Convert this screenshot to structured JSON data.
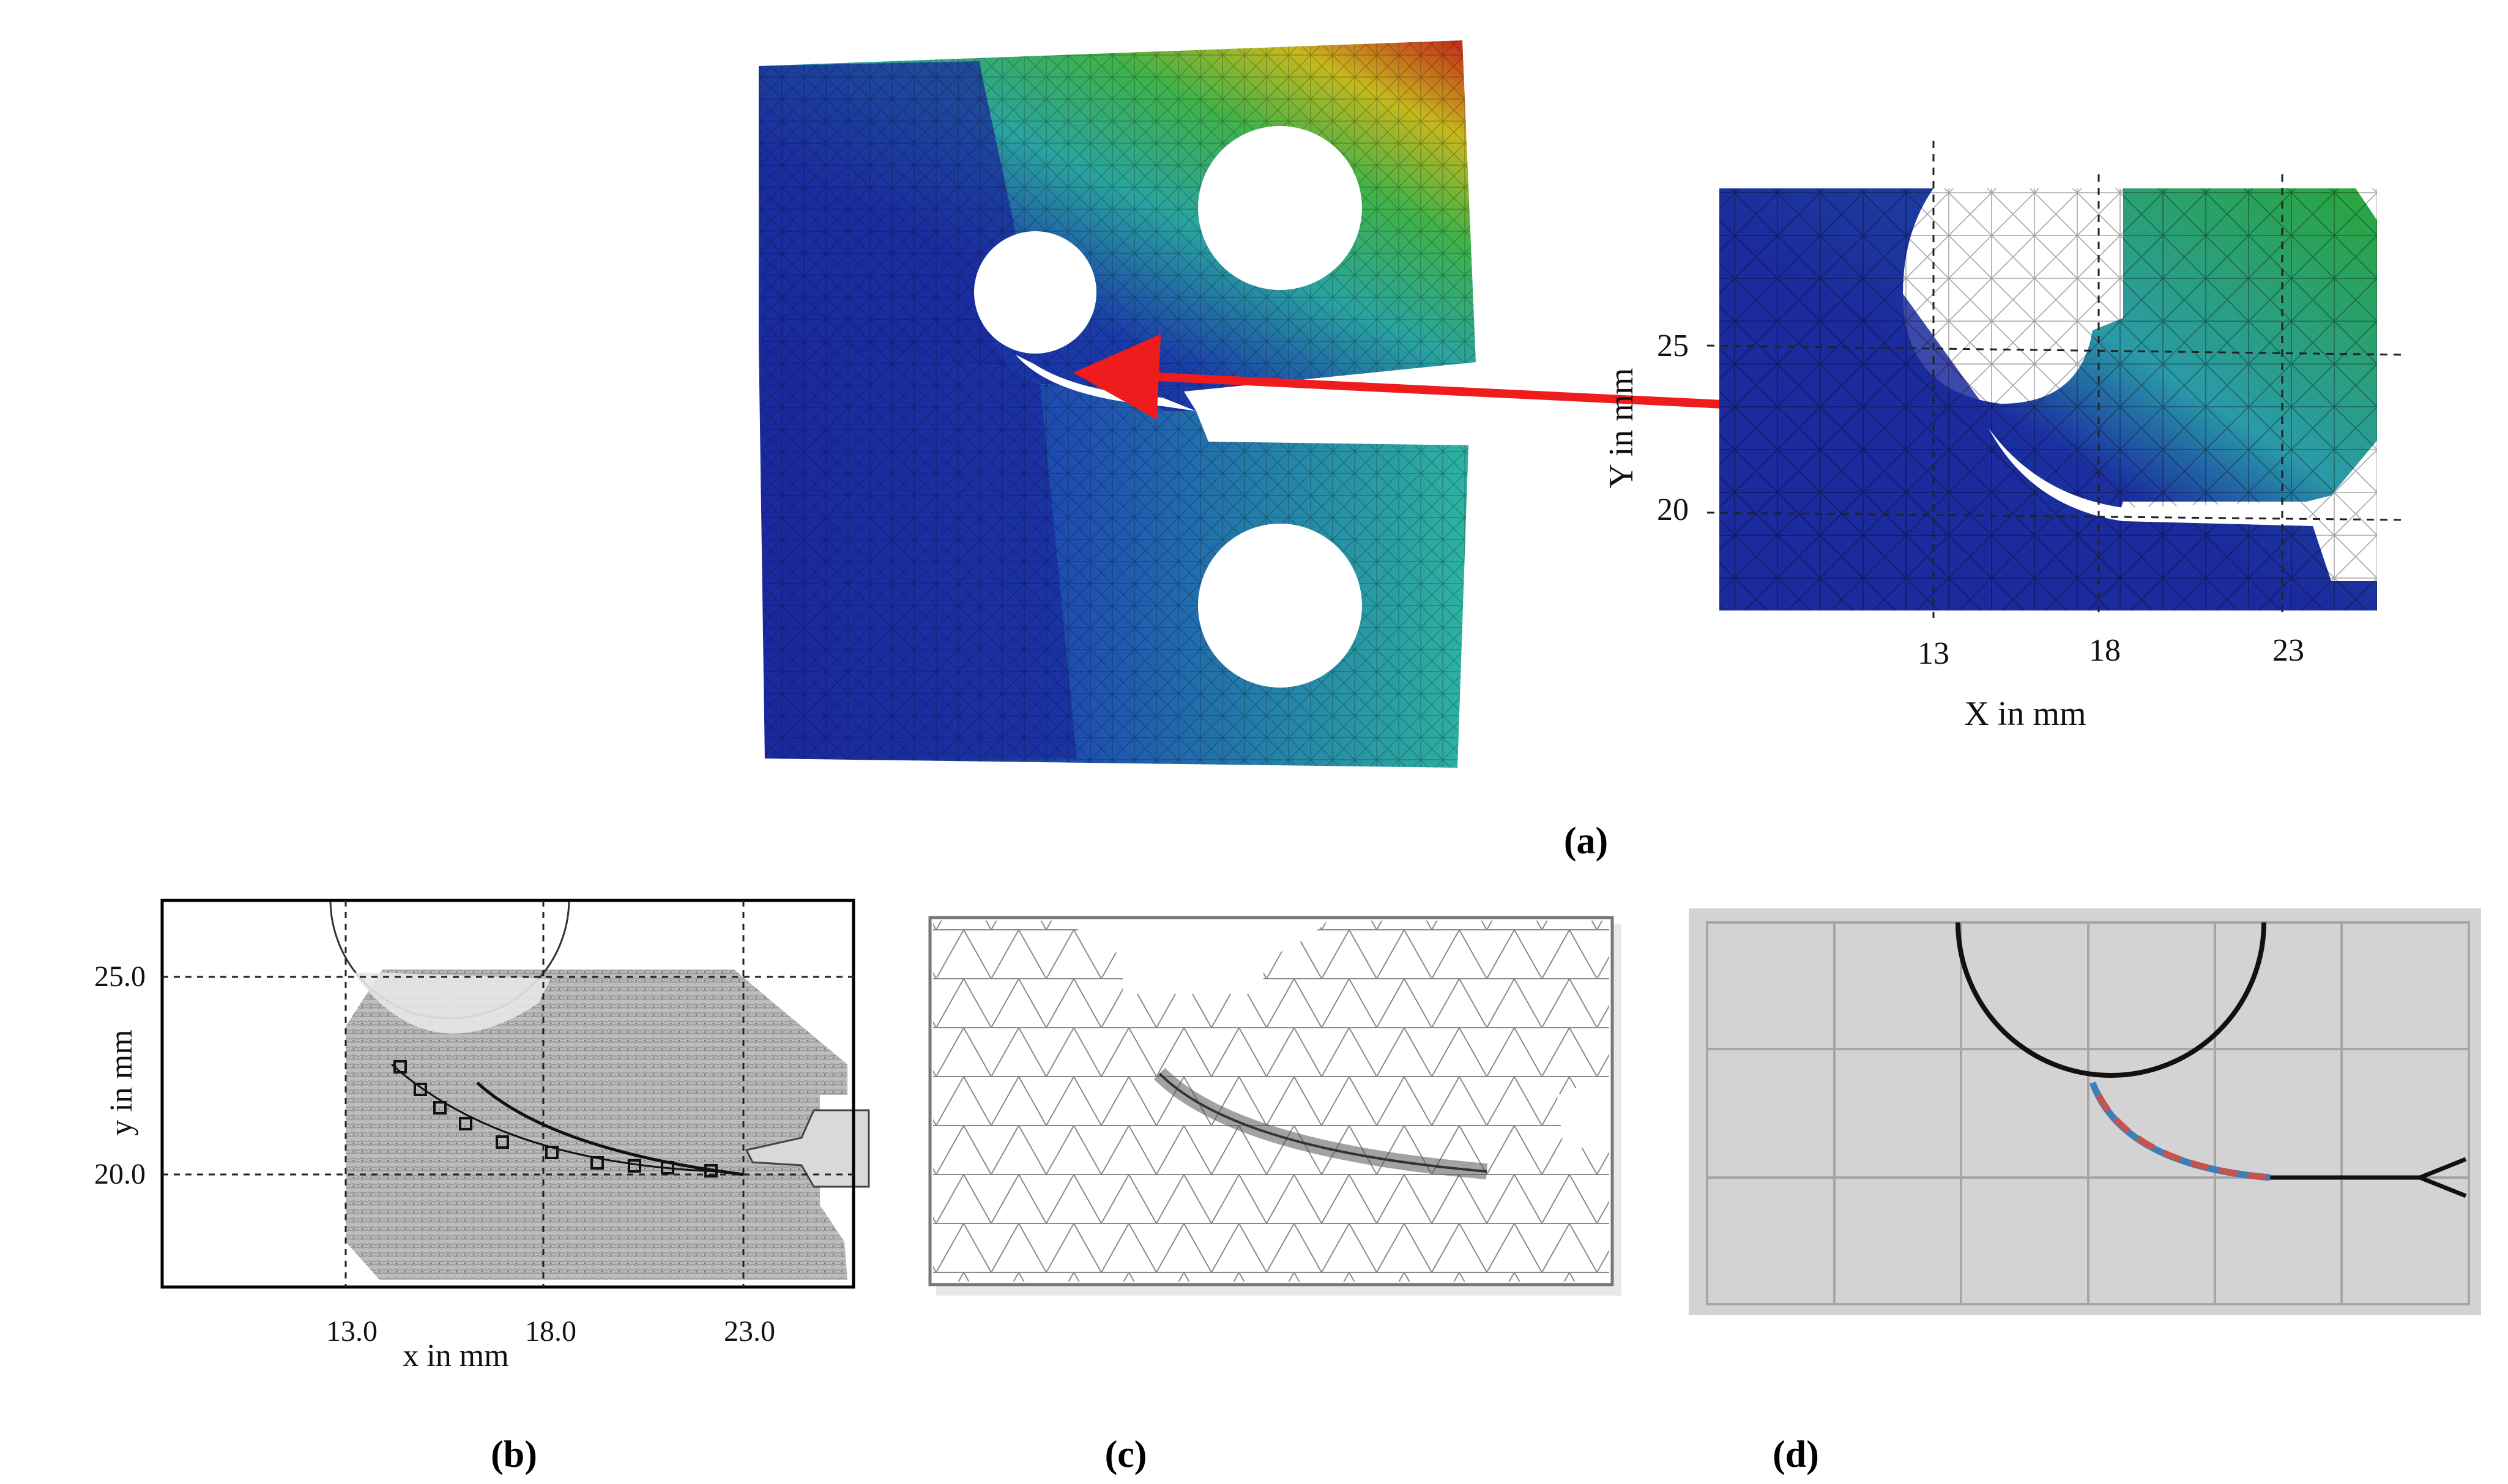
{
  "captions": {
    "a": "(a)",
    "b": "(b)",
    "c": "(c)",
    "d": "(d)"
  },
  "panel_a_zoom": {
    "xlabel": "X in mm",
    "ylabel": "Y in mm",
    "xticks": [
      "13",
      "18",
      "23"
    ],
    "yticks": [
      "25",
      "20"
    ]
  },
  "panel_b": {
    "xlabel": "x in mm",
    "ylabel": "y in mm",
    "xticks": [
      "13.0",
      "18.0",
      "23.0"
    ],
    "yticks": [
      "25.0",
      "20.0"
    ]
  },
  "colors": {
    "fem_low": "#1a2a9e",
    "fem_mid": "#2ea88c",
    "fem_high": "#c01f1a",
    "arrow": "#ee1c1c",
    "crack_blue": "#3f7fb8",
    "crack_red_dashed": "#c9514e",
    "grid_panel_bg": "#d3d3d3"
  }
}
